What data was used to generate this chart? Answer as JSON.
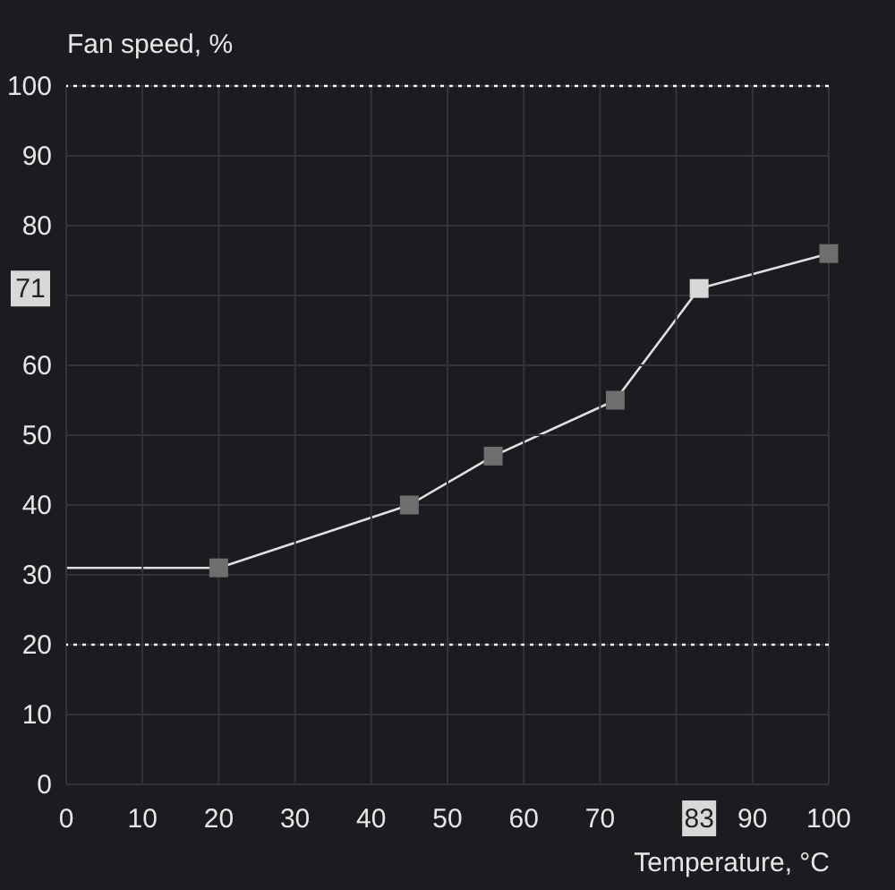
{
  "chart_data": {
    "type": "line",
    "xlabel": "Temperature, °C",
    "ylabel": "Fan speed, %",
    "x": [
      0,
      20,
      45,
      56,
      72,
      83,
      100
    ],
    "series": [
      {
        "color": "#e0e0e0",
        "values": [
          31,
          31,
          40,
          47,
          55,
          71,
          76
        ],
        "colors": [
          null,
          "#6e6e6e",
          "#6e6e6e",
          "#6e6e6e",
          "#6e6e6e",
          "#d8d8d8",
          "#6e6e6e"
        ]
      }
    ],
    "marker": "square",
    "line_style": "solid",
    "xlim": [
      0,
      100
    ],
    "xticks": [
      0,
      10,
      20,
      30,
      40,
      50,
      60,
      70,
      {
        "value": 80,
        "label": null
      },
      83,
      90,
      100
    ],
    "ylim": [
      0,
      100
    ],
    "yticks": [
      0,
      10,
      20,
      30,
      40,
      50,
      60,
      {
        "value": 70,
        "label": null
      },
      71,
      80,
      90,
      100
    ],
    "grid": true,
    "ref_lines": [
      {
        "axis": "y",
        "value": 100,
        "color": "#ffffff",
        "line_style": "dotted"
      },
      {
        "axis": "y",
        "value": 20,
        "color": "#ffffff",
        "line_style": "dotted"
      }
    ]
  }
}
